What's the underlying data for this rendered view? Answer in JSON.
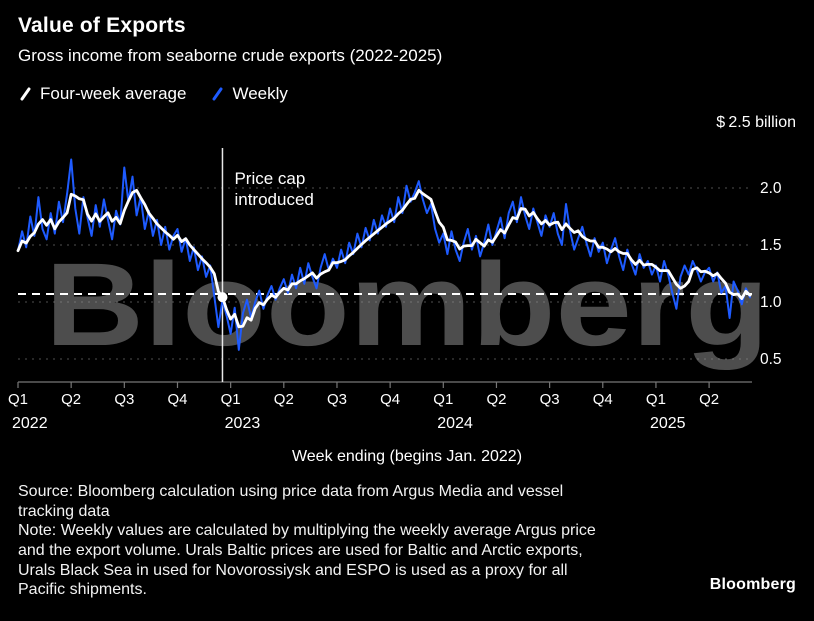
{
  "watermark": "Bloomberg",
  "header": {
    "title": "Value of Exports",
    "subtitle": "Gross income from seaborne crude exports (2022-2025)",
    "legend": [
      {
        "label": "Four-week average",
        "color": "#ffffff"
      },
      {
        "label": "Weekly",
        "color": "#1e5bff"
      }
    ]
  },
  "chart_data": {
    "type": "line",
    "title": "Value of Exports",
    "subtitle": "Gross income from seaborne crude exports (2022-2025)",
    "top_label": "$ 2.5 billion",
    "unit": "$ billion",
    "xlabel": "Week ending (begins Jan. 2022)",
    "ylim": [
      0.3,
      2.5
    ],
    "yticks": [
      {
        "value": 2.0,
        "label": "2.0"
      },
      {
        "value": 1.5,
        "label": "1.5"
      },
      {
        "value": 1.0,
        "label": "1.0"
      },
      {
        "value": 0.5,
        "label": "0.5"
      }
    ],
    "x_axis": {
      "ticks": [
        {
          "index": 0,
          "label": "Q1"
        },
        {
          "index": 13,
          "label": "Q2"
        },
        {
          "index": 26,
          "label": "Q3"
        },
        {
          "index": 39,
          "label": "Q4"
        },
        {
          "index": 52,
          "label": "Q1"
        },
        {
          "index": 65,
          "label": "Q2"
        },
        {
          "index": 78,
          "label": "Q3"
        },
        {
          "index": 91,
          "label": "Q4"
        },
        {
          "index": 104,
          "label": "Q1"
        },
        {
          "index": 117,
          "label": "Q2"
        },
        {
          "index": 130,
          "label": "Q3"
        },
        {
          "index": 143,
          "label": "Q4"
        },
        {
          "index": 156,
          "label": "Q1"
        },
        {
          "index": 169,
          "label": "Q2"
        }
      ],
      "years": [
        {
          "index": 0,
          "label": "2022"
        },
        {
          "index": 52,
          "label": "2023"
        },
        {
          "index": 104,
          "label": "2024"
        },
        {
          "index": 156,
          "label": "2025"
        }
      ]
    },
    "event_line": {
      "week_index": 50,
      "label_lines": [
        "Price cap",
        "introduced"
      ],
      "color": "#e8e8e8"
    },
    "reference_line": {
      "value": 1.07,
      "style": "dashed",
      "color": "#ffffff"
    },
    "series": [
      {
        "name": "Four-week average",
        "color": "#ffffff",
        "method": "moving_average_window_4_of_Weekly"
      },
      {
        "name": "Weekly",
        "color": "#1e5bff",
        "values": [
          1.45,
          1.62,
          1.48,
          1.75,
          1.58,
          1.92,
          1.64,
          1.55,
          1.78,
          1.6,
          1.88,
          1.7,
          1.95,
          2.25,
          1.82,
          1.6,
          1.92,
          1.74,
          1.58,
          1.85,
          1.66,
          1.9,
          1.72,
          1.55,
          1.8,
          1.68,
          2.18,
          1.88,
          2.1,
          1.76,
          1.92,
          1.64,
          1.8,
          1.58,
          1.72,
          1.5,
          1.66,
          1.46,
          1.58,
          1.64,
          1.44,
          1.56,
          1.36,
          1.48,
          1.28,
          1.4,
          1.22,
          1.32,
          1.05,
          0.78,
          1.02,
          0.88,
          0.72,
          0.95,
          0.58,
          0.9,
          1.02,
          0.86,
          1.0,
          1.1,
          0.94,
          1.06,
          1.14,
          1.02,
          1.12,
          1.2,
          1.08,
          1.24,
          1.12,
          1.3,
          1.16,
          1.34,
          1.22,
          1.12,
          1.3,
          1.42,
          1.28,
          1.38,
          1.3,
          1.46,
          1.34,
          1.52,
          1.42,
          1.6,
          1.48,
          1.65,
          1.54,
          1.72,
          1.6,
          1.76,
          1.66,
          1.82,
          1.7,
          1.92,
          1.78,
          2.02,
          1.88,
          1.96,
          2.06,
          1.9,
          1.78,
          1.86,
          1.64,
          1.52,
          1.6,
          1.42,
          1.62,
          1.46,
          1.36,
          1.52,
          1.64,
          1.46,
          1.58,
          1.4,
          1.52,
          1.68,
          1.5,
          1.62,
          1.74,
          1.56,
          1.78,
          1.88,
          1.7,
          1.92,
          1.76,
          1.64,
          1.82,
          1.7,
          1.58,
          1.76,
          1.66,
          1.78,
          1.6,
          1.5,
          1.86,
          1.62,
          1.46,
          1.56,
          1.66,
          1.52,
          1.4,
          1.56,
          1.44,
          1.52,
          1.34,
          1.46,
          1.56,
          1.4,
          1.28,
          1.46,
          1.34,
          1.24,
          1.42,
          1.3,
          1.36,
          1.24,
          1.32,
          1.18,
          1.36,
          1.24,
          1.08,
          0.94,
          1.22,
          1.32,
          1.24,
          1.36,
          1.28,
          1.18,
          1.26,
          1.3,
          1.18,
          1.26,
          1.08,
          1.14,
          0.86,
          1.18,
          1.1,
          0.98,
          1.12,
          1.04
        ]
      }
    ],
    "legend_position": "top-left",
    "grid": "horizontal-dotted"
  },
  "footer": {
    "source": "Source: Bloomberg calculation using price data from Argus Media and vessel tracking data",
    "note": "Note: Weekly values are calculated by multiplying the weekly average Argus price and the export volume. Urals Baltic prices are used for Baltic and Arctic exports, Urals Black Sea in used for Novorossiysk and ESPO is used as a proxy for all Pacific shipments.",
    "logo": "Bloomberg"
  }
}
